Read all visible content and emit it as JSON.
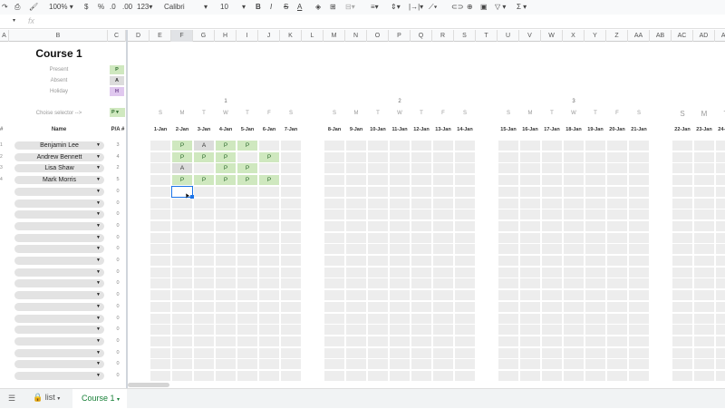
{
  "toolbar": {
    "zoom": "100%",
    "currency": "$",
    "percent": "%",
    "dec_less": ".0",
    "dec_more": ".00",
    "format": "123",
    "font": "Calibri",
    "size": "10"
  },
  "formula_bar": {
    "fx": "fx"
  },
  "columns": [
    "A",
    "B",
    "C",
    "D",
    "E",
    "F",
    "G",
    "H",
    "I",
    "J",
    "K",
    "L",
    "M",
    "N",
    "O",
    "P",
    "Q",
    "R",
    "S",
    "T",
    "U",
    "V",
    "W",
    "X",
    "Y",
    "Z",
    "AA",
    "AB",
    "AC",
    "AD",
    "AE"
  ],
  "selected_column": "F",
  "sheet": {
    "title": "Course 1",
    "legend": [
      {
        "label": "Present",
        "code": "P"
      },
      {
        "label": "Absent",
        "code": "A"
      },
      {
        "label": "Holiday",
        "code": "H"
      }
    ],
    "selector_label": "Choise selector -->",
    "selector_value": "P",
    "header_hash": "#",
    "header_name": "Name",
    "header_pa": "P/A #",
    "weeks": [
      {
        "num": "1",
        "days": [
          "S",
          "M",
          "T",
          "W",
          "T",
          "F",
          "S"
        ],
        "dates": [
          "1-Jan",
          "2-Jan",
          "3-Jan",
          "4-Jan",
          "5-Jan",
          "6-Jan",
          "7-Jan"
        ]
      },
      {
        "num": "2",
        "days": [
          "S",
          "M",
          "T",
          "W",
          "T",
          "F",
          "S"
        ],
        "dates": [
          "8-Jan",
          "9-Jan",
          "10-Jan",
          "11-Jan",
          "12-Jan",
          "13-Jan",
          "14-Jan"
        ]
      },
      {
        "num": "3",
        "days": [
          "S",
          "M",
          "T",
          "W",
          "T",
          "F",
          "S"
        ],
        "dates": [
          "15-Jan",
          "16-Jan",
          "17-Jan",
          "18-Jan",
          "19-Jan",
          "20-Jan",
          "21-Jan"
        ]
      },
      {
        "num": "",
        "days": [
          "S",
          "M",
          "T"
        ],
        "dates": [
          "22-Jan",
          "23-Jan",
          "24-Jan"
        ]
      }
    ],
    "students": [
      {
        "num": "1",
        "name": "Benjamin Lee",
        "count": "3",
        "marks": [
          "",
          "P",
          "A",
          "P",
          "P",
          "",
          ""
        ]
      },
      {
        "num": "2",
        "name": "Andrew Bennett",
        "count": "4",
        "marks": [
          "",
          "P",
          "P",
          "P",
          "",
          "P",
          ""
        ]
      },
      {
        "num": "3",
        "name": "Lisa Shaw",
        "count": "2",
        "marks": [
          "",
          "A",
          "",
          "P",
          "P",
          "",
          ""
        ]
      },
      {
        "num": "4",
        "name": "Mark Morris",
        "count": "5",
        "marks": [
          "",
          "P",
          "P",
          "P",
          "P",
          "P",
          ""
        ]
      }
    ],
    "empty_count": "0"
  },
  "colors": {
    "present": "#cfe8bf",
    "absent": "#dcdcdc",
    "holiday": "#e0c8ef",
    "active_tab": "#188038",
    "selection": "#1a73e8"
  },
  "tabs": {
    "list": "list",
    "active": "Course 1"
  }
}
